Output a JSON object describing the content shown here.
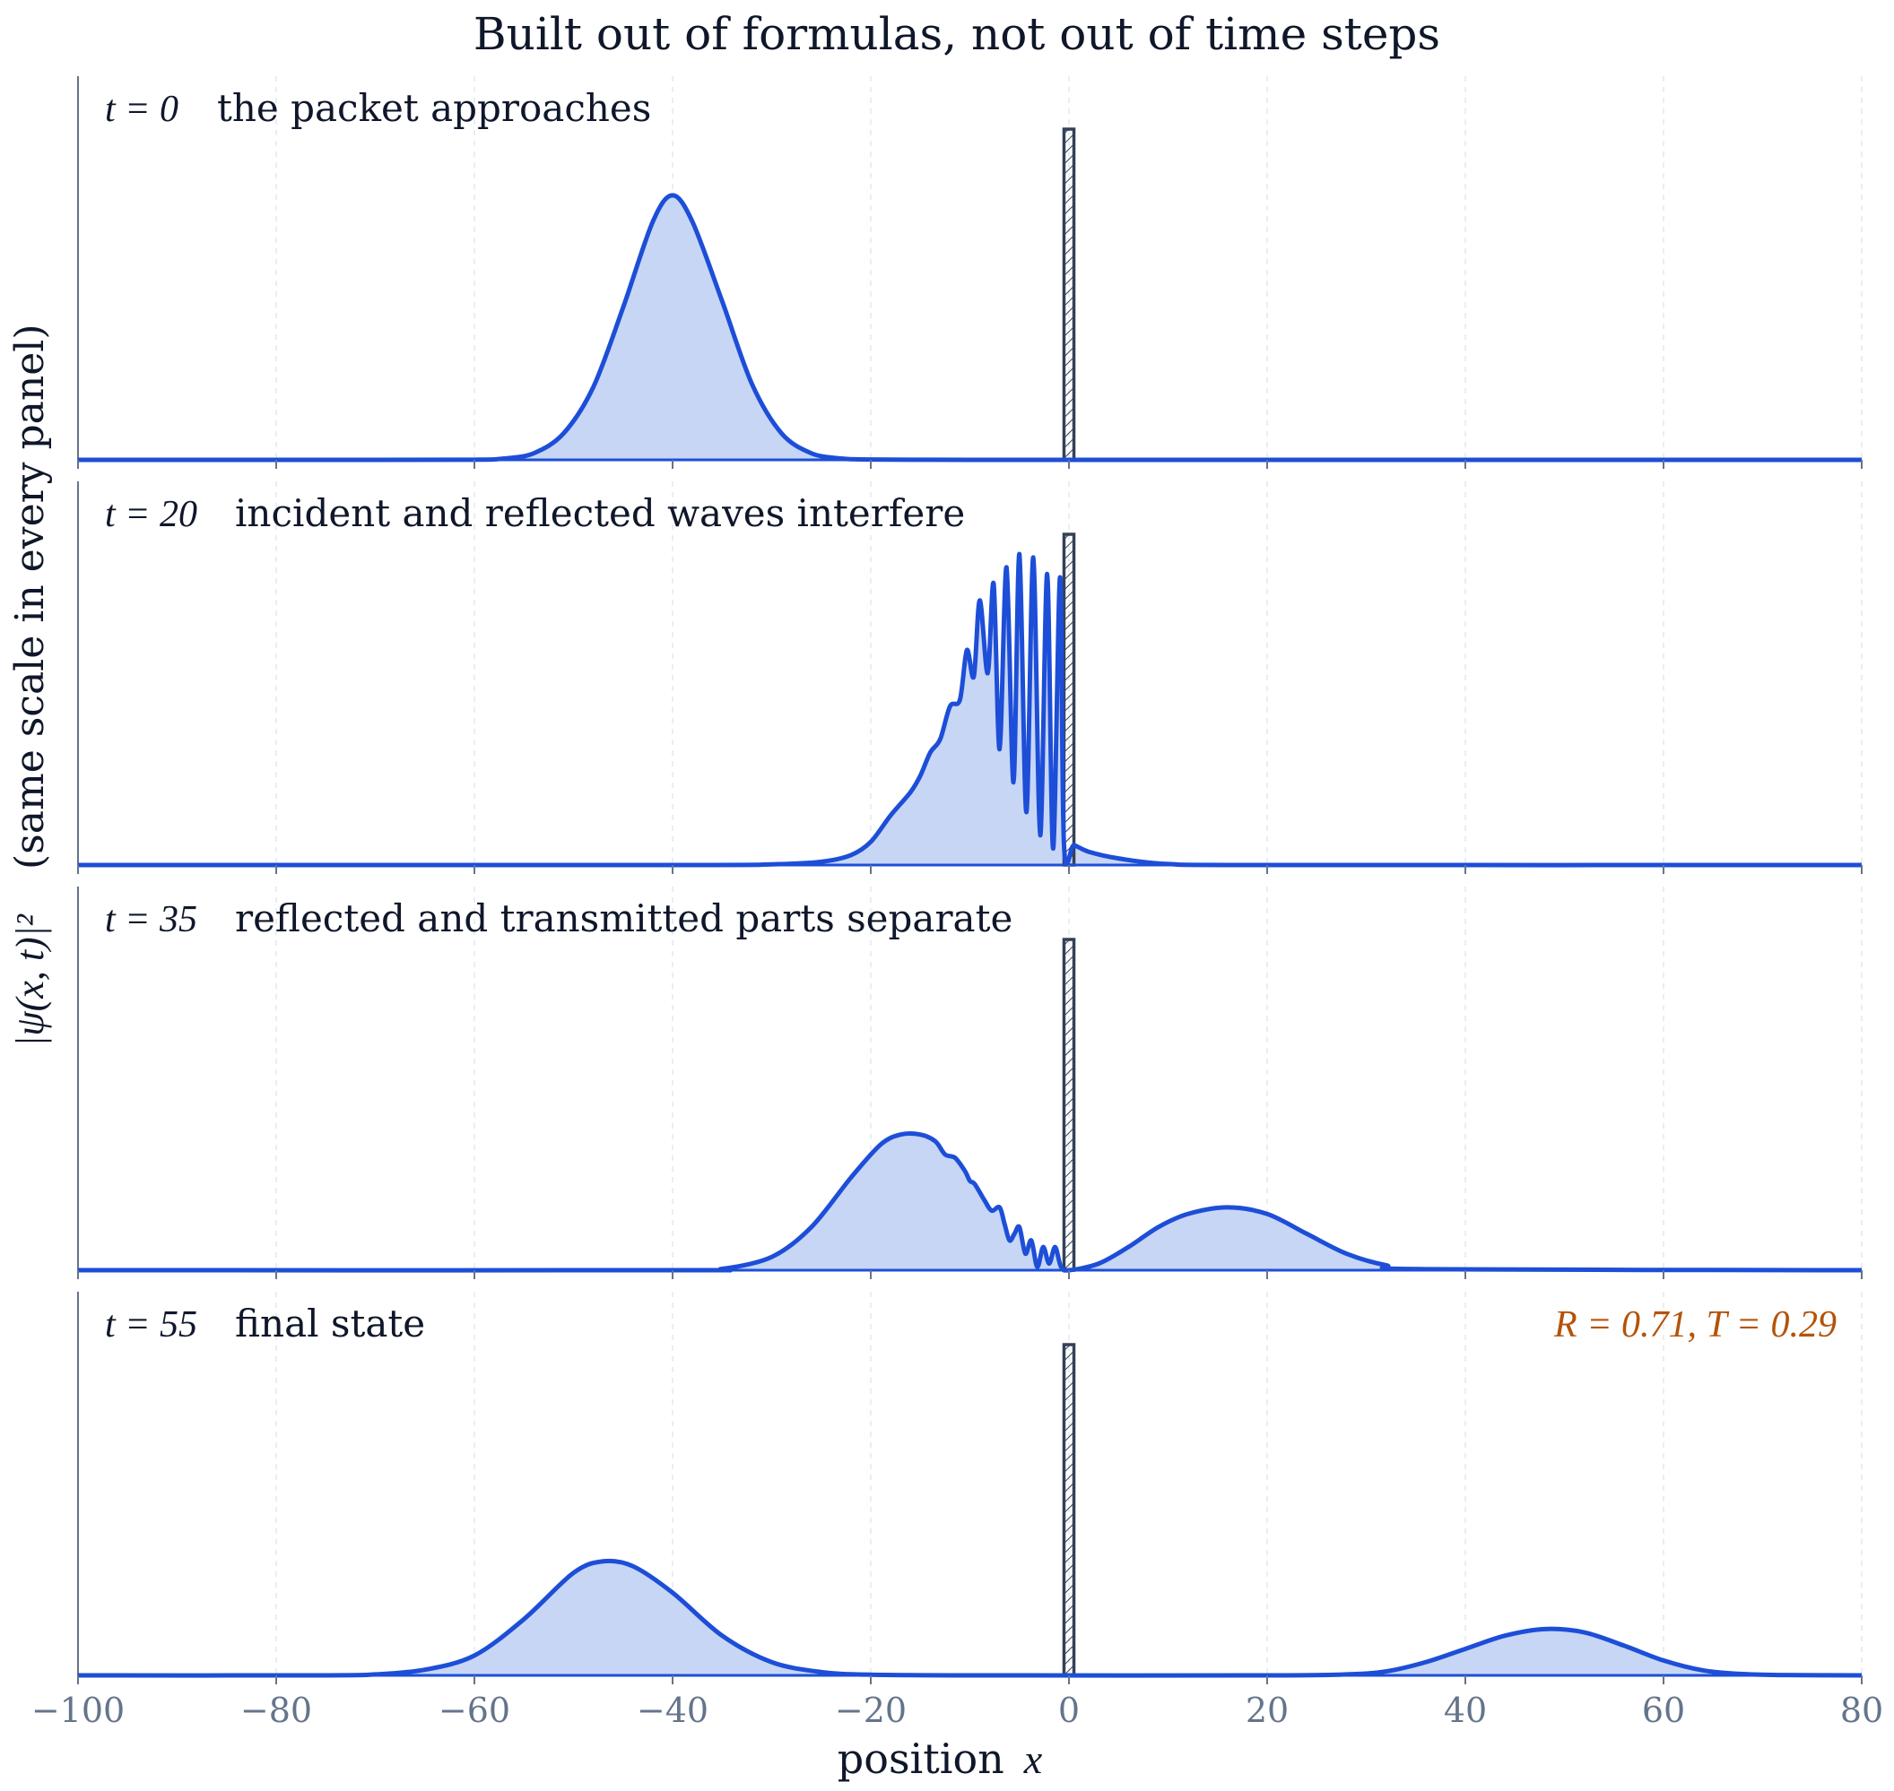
{
  "chart_data": {
    "type": "line",
    "title": "Built out of formulas, not out of time steps",
    "xlabel_text": "position",
    "xlabel_symbol": "x",
    "ylabel_main": "(same scale in every panel)",
    "ylabel_math": "|ψ(x, t)|²",
    "xlim": [
      -100,
      80
    ],
    "xticks": [
      -100,
      -80,
      -60,
      -40,
      -20,
      0,
      20,
      40,
      60,
      80
    ],
    "xtick_labels": [
      "−100",
      "−80",
      "−60",
      "−40",
      "−20",
      "0",
      "20",
      "40",
      "60",
      "80"
    ],
    "ylim": [
      0,
      1.16
    ],
    "grid": "vertical dashed",
    "barrier": {
      "x0": -0.5,
      "x1": 0.5,
      "height": 1.0
    },
    "colors": {
      "line": "#1d4ed8",
      "fill": "#c7d6f5",
      "barrier": "#334155",
      "text": "#0f172a",
      "tick": "#64748b",
      "annotation": "#b45309",
      "grid": "#e2e8f0"
    },
    "panels": [
      {
        "time_label": "t = 0",
        "caption": "the packet approaches",
        "x": [
          -100,
          -70,
          -60,
          -57,
          -54,
          -51,
          -48,
          -45,
          -42,
          -40,
          -38,
          -35,
          -32,
          -29,
          -26,
          -23,
          -20,
          -10,
          0,
          80
        ],
        "y": [
          0,
          0,
          0.0005,
          0.004,
          0.02,
          0.08,
          0.22,
          0.46,
          0.72,
          0.8,
          0.72,
          0.48,
          0.23,
          0.08,
          0.02,
          0.004,
          0.001,
          0,
          0,
          0
        ]
      },
      {
        "time_label": "t = 20",
        "caption": "incident and reflected waves interfere",
        "x": [
          -100,
          -40,
          -30,
          -25,
          -22,
          -20,
          -18,
          -16,
          -15,
          -14,
          -13,
          -12,
          -11,
          -10.3,
          -9.6,
          -9.0,
          -8.2,
          -7.6,
          -7.0,
          -6.3,
          -5.6,
          -5.0,
          -4.3,
          -3.6,
          -2.9,
          -2.2,
          -1.6,
          -0.9,
          -0.5,
          0.5,
          2,
          5,
          10,
          20,
          80
        ],
        "y": [
          0,
          0,
          0.002,
          0.01,
          0.03,
          0.07,
          0.15,
          0.22,
          0.27,
          0.34,
          0.38,
          0.48,
          0.5,
          0.65,
          0.57,
          0.8,
          0.58,
          0.85,
          0.35,
          0.9,
          0.25,
          0.94,
          0.16,
          0.93,
          0.09,
          0.88,
          0.05,
          0.87,
          0.06,
          0.06,
          0.04,
          0.02,
          0.003,
          0,
          0
        ]
      },
      {
        "time_label": "t = 35",
        "caption": "reflected and transmitted parts separate",
        "x": [
          -100,
          -40,
          -35,
          -30,
          -26,
          -22,
          -19,
          -17,
          -15,
          -13.5,
          -12.5,
          -11.5,
          -10.5,
          -10,
          -9.5,
          -8.5,
          -7.8,
          -7,
          -6.5,
          -6,
          -5.5,
          -5,
          -4.4,
          -3.8,
          -3.2,
          -2.6,
          -2,
          -1.4,
          -0.8,
          0,
          3,
          6,
          9,
          12,
          16,
          20,
          24,
          28,
          32,
          36,
          80
        ],
        "y": [
          0,
          0,
          0.004,
          0.04,
          0.13,
          0.28,
          0.38,
          0.41,
          0.41,
          0.39,
          0.35,
          0.34,
          0.3,
          0.27,
          0.26,
          0.21,
          0.18,
          0.19,
          0.14,
          0.09,
          0.11,
          0.13,
          0.05,
          0.09,
          0.01,
          0.07,
          0.02,
          0.07,
          0.01,
          0.0,
          0.02,
          0.07,
          0.13,
          0.17,
          0.19,
          0.17,
          0.11,
          0.05,
          0.015,
          0.003,
          0
        ]
      },
      {
        "time_label": "t = 55",
        "caption": "final state",
        "annotation": "R = 0.71,   T = 0.29",
        "x": [
          -100,
          -75,
          -70,
          -65,
          -60,
          -55,
          -50,
          -47,
          -44,
          -40,
          -35,
          -30,
          -25,
          -20,
          -10,
          20,
          28,
          32,
          36,
          40,
          44,
          48,
          52,
          56,
          60,
          64,
          68,
          72,
          80
        ],
        "y": [
          0,
          0,
          0.003,
          0.017,
          0.06,
          0.17,
          0.31,
          0.345,
          0.33,
          0.25,
          0.12,
          0.04,
          0.01,
          0.002,
          0,
          0,
          0.003,
          0.012,
          0.04,
          0.08,
          0.12,
          0.14,
          0.13,
          0.09,
          0.045,
          0.015,
          0.004,
          0.001,
          0
        ]
      }
    ]
  }
}
